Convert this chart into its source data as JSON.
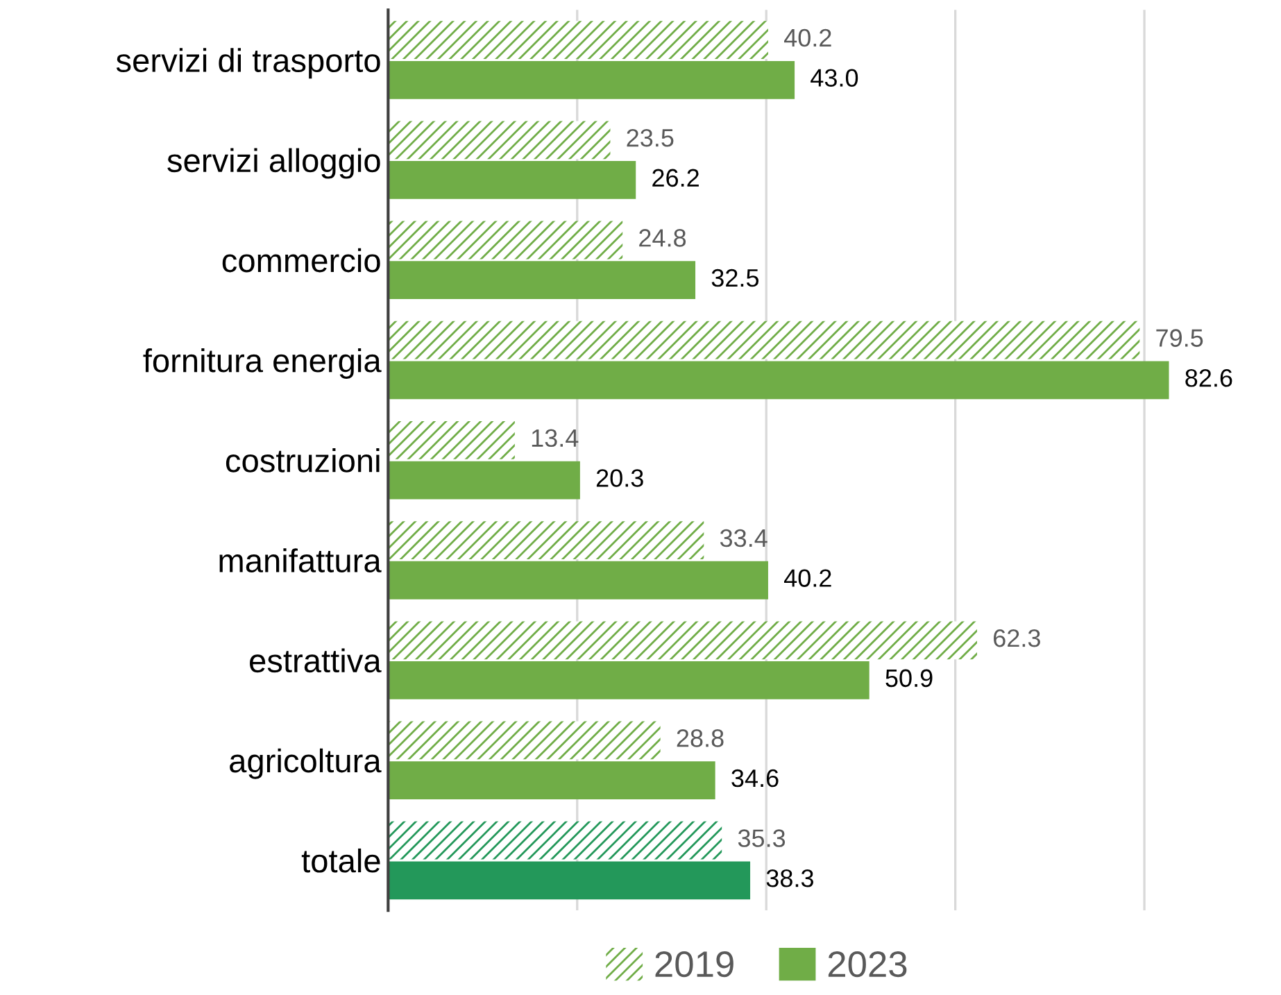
{
  "chart_data": {
    "type": "bar",
    "orientation": "horizontal",
    "categories": [
      "servizi di trasporto",
      "servizi alloggio",
      "commercio",
      "fornitura energia",
      "costruzioni",
      "manifattura",
      "estrattiva",
      "agricoltura",
      "totale"
    ],
    "series": [
      {
        "name": "2019",
        "colors": [
          "#70ad47",
          "#70ad47",
          "#70ad47",
          "#70ad47",
          "#70ad47",
          "#70ad47",
          "#70ad47",
          "#70ad47",
          "#23985a"
        ],
        "values": [
          40.2,
          23.5,
          24.8,
          79.5,
          13.4,
          33.4,
          62.3,
          28.8,
          35.3
        ],
        "value_labels": [
          "40.2",
          "23.5",
          "24.8",
          "79.5",
          "13.4",
          "33.4",
          "62.3",
          "28.8",
          "35.3"
        ]
      },
      {
        "name": "2023",
        "colors": [
          "#70ad47",
          "#70ad47",
          "#70ad47",
          "#70ad47",
          "#70ad47",
          "#70ad47",
          "#70ad47",
          "#70ad47",
          "#23985a"
        ],
        "values": [
          43.0,
          26.2,
          32.5,
          82.6,
          20.3,
          40.2,
          50.9,
          34.6,
          38.3
        ],
        "value_labels": [
          "43.0",
          "26.2",
          "32.5",
          "82.6",
          "20.3",
          "40.2",
          "50.9",
          "34.6",
          "38.3"
        ]
      }
    ],
    "xticks": [
      {
        "value": 0,
        "label": null
      },
      {
        "value": 20,
        "label": null
      },
      {
        "value": 40,
        "label": null
      },
      {
        "value": 60,
        "label": null
      },
      {
        "value": 80,
        "label": null
      }
    ],
    "grid": "x",
    "legend": "bottom",
    "tick_labels": "y"
  }
}
